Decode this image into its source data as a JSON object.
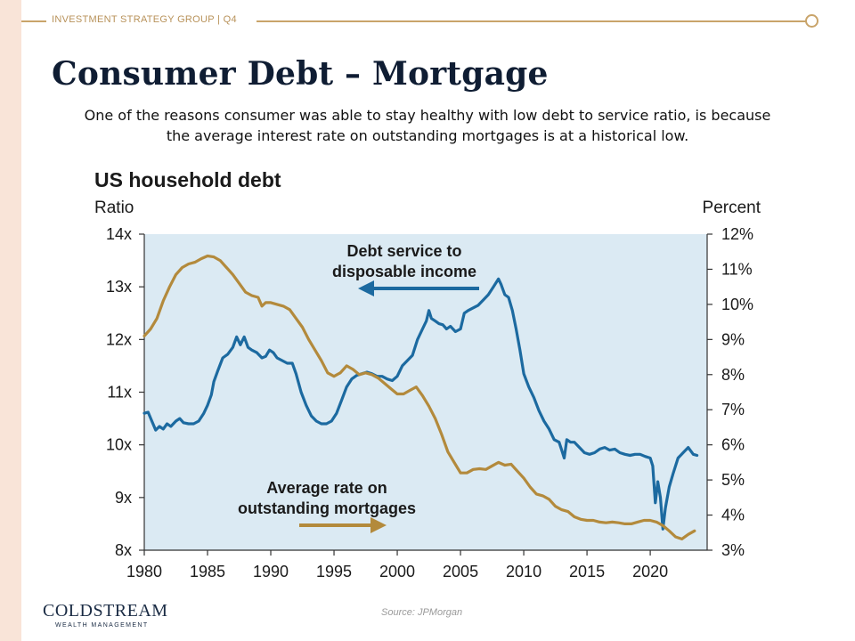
{
  "header": {
    "label": "INVESTMENT STRATEGY GROUP | Q4"
  },
  "slide": {
    "title": "Consumer Debt – Mortgage",
    "subtitle_line1": "One of the reasons consumer was able to stay healthy with low debt to service ratio, is because",
    "subtitle_line2": "the average interest rate on outstanding mortgages  is at a historical low."
  },
  "chart_data": {
    "type": "line",
    "title": "US household debt",
    "left_axis_label": "Ratio",
    "right_axis_label": "Percent",
    "x_ticks": [
      "1980",
      "1985",
      "1990",
      "1995",
      "2000",
      "2005",
      "2010",
      "2015",
      "2020"
    ],
    "left_ticks": [
      "14x",
      "13x",
      "12x",
      "11x",
      "10x",
      "9x",
      "8x"
    ],
    "right_ticks": [
      "12%",
      "11%",
      "10%",
      "9%",
      "8%",
      "7%",
      "6%",
      "5%",
      "4%",
      "3%"
    ],
    "xlim": [
      1980,
      2024.5
    ],
    "ylim_left": [
      8,
      14
    ],
    "ylim_right": [
      3,
      12
    ],
    "colors": {
      "debt_service": "#1c6aa0",
      "mortgage_rate": "#b38a3c",
      "plot_bg": "#dbeaf3"
    },
    "annotations": {
      "debt_service_line1": "Debt service to",
      "debt_service_line2": "disposable income",
      "mortgage_line1": "Average rate on",
      "mortgage_line2": "outstanding mortgages"
    },
    "series": [
      {
        "name": "Debt service to disposable income",
        "axis": "left",
        "points": [
          [
            1980.0,
            10.6
          ],
          [
            1980.3,
            10.62
          ],
          [
            1980.6,
            10.45
          ],
          [
            1980.9,
            10.28
          ],
          [
            1981.2,
            10.35
          ],
          [
            1981.5,
            10.3
          ],
          [
            1981.8,
            10.4
          ],
          [
            1982.1,
            10.35
          ],
          [
            1982.5,
            10.45
          ],
          [
            1982.8,
            10.5
          ],
          [
            1983.1,
            10.42
          ],
          [
            1983.5,
            10.4
          ],
          [
            1983.9,
            10.4
          ],
          [
            1984.3,
            10.45
          ],
          [
            1984.7,
            10.6
          ],
          [
            1985.0,
            10.75
          ],
          [
            1985.3,
            10.95
          ],
          [
            1985.5,
            11.2
          ],
          [
            1985.8,
            11.4
          ],
          [
            1986.2,
            11.65
          ],
          [
            1986.6,
            11.72
          ],
          [
            1987.0,
            11.85
          ],
          [
            1987.3,
            12.05
          ],
          [
            1987.6,
            11.9
          ],
          [
            1987.9,
            12.05
          ],
          [
            1988.2,
            11.85
          ],
          [
            1988.5,
            11.8
          ],
          [
            1988.9,
            11.75
          ],
          [
            1989.3,
            11.65
          ],
          [
            1989.6,
            11.68
          ],
          [
            1989.9,
            11.8
          ],
          [
            1990.2,
            11.75
          ],
          [
            1990.5,
            11.65
          ],
          [
            1990.9,
            11.6
          ],
          [
            1991.3,
            11.55
          ],
          [
            1991.7,
            11.55
          ],
          [
            1992.0,
            11.35
          ],
          [
            1992.4,
            11.0
          ],
          [
            1992.8,
            10.75
          ],
          [
            1993.2,
            10.55
          ],
          [
            1993.6,
            10.45
          ],
          [
            1994.0,
            10.4
          ],
          [
            1994.4,
            10.4
          ],
          [
            1994.8,
            10.45
          ],
          [
            1995.2,
            10.6
          ],
          [
            1995.6,
            10.85
          ],
          [
            1996.0,
            11.1
          ],
          [
            1996.4,
            11.25
          ],
          [
            1996.8,
            11.32
          ],
          [
            1997.2,
            11.35
          ],
          [
            1997.6,
            11.38
          ],
          [
            1998.0,
            11.35
          ],
          [
            1998.4,
            11.3
          ],
          [
            1998.8,
            11.3
          ],
          [
            1999.2,
            11.25
          ],
          [
            1999.6,
            11.22
          ],
          [
            2000.0,
            11.3
          ],
          [
            2000.4,
            11.5
          ],
          [
            2000.8,
            11.6
          ],
          [
            2001.2,
            11.7
          ],
          [
            2001.6,
            12.0
          ],
          [
            2002.0,
            12.2
          ],
          [
            2002.3,
            12.35
          ],
          [
            2002.5,
            12.55
          ],
          [
            2002.7,
            12.4
          ],
          [
            2003.0,
            12.35
          ],
          [
            2003.3,
            12.3
          ],
          [
            2003.6,
            12.28
          ],
          [
            2003.9,
            12.2
          ],
          [
            2004.2,
            12.25
          ],
          [
            2004.6,
            12.15
          ],
          [
            2005.0,
            12.2
          ],
          [
            2005.3,
            12.5
          ],
          [
            2005.6,
            12.55
          ],
          [
            2006.0,
            12.6
          ],
          [
            2006.4,
            12.65
          ],
          [
            2006.8,
            12.75
          ],
          [
            2007.2,
            12.85
          ],
          [
            2007.6,
            13.0
          ],
          [
            2008.0,
            13.15
          ],
          [
            2008.2,
            13.05
          ],
          [
            2008.5,
            12.85
          ],
          [
            2008.8,
            12.8
          ],
          [
            2009.1,
            12.55
          ],
          [
            2009.4,
            12.2
          ],
          [
            2009.7,
            11.8
          ],
          [
            2010.0,
            11.35
          ],
          [
            2010.4,
            11.1
          ],
          [
            2010.8,
            10.9
          ],
          [
            2011.2,
            10.65
          ],
          [
            2011.6,
            10.45
          ],
          [
            2012.0,
            10.3
          ],
          [
            2012.4,
            10.1
          ],
          [
            2012.8,
            10.05
          ],
          [
            2013.0,
            9.9
          ],
          [
            2013.2,
            9.75
          ],
          [
            2013.4,
            10.1
          ],
          [
            2013.7,
            10.05
          ],
          [
            2014.0,
            10.05
          ],
          [
            2014.4,
            9.95
          ],
          [
            2014.8,
            9.85
          ],
          [
            2015.2,
            9.82
          ],
          [
            2015.6,
            9.85
          ],
          [
            2016.0,
            9.92
          ],
          [
            2016.4,
            9.95
          ],
          [
            2016.8,
            9.9
          ],
          [
            2017.2,
            9.92
          ],
          [
            2017.6,
            9.85
          ],
          [
            2018.0,
            9.82
          ],
          [
            2018.4,
            9.8
          ],
          [
            2018.8,
            9.82
          ],
          [
            2019.2,
            9.82
          ],
          [
            2019.6,
            9.78
          ],
          [
            2020.0,
            9.75
          ],
          [
            2020.2,
            9.6
          ],
          [
            2020.4,
            8.9
          ],
          [
            2020.6,
            9.3
          ],
          [
            2020.8,
            9.0
          ],
          [
            2021.0,
            8.4
          ],
          [
            2021.2,
            8.8
          ],
          [
            2021.5,
            9.2
          ],
          [
            2021.8,
            9.45
          ],
          [
            2022.2,
            9.75
          ],
          [
            2022.6,
            9.85
          ],
          [
            2023.0,
            9.95
          ],
          [
            2023.4,
            9.82
          ],
          [
            2023.7,
            9.8
          ]
        ]
      },
      {
        "name": "Average rate on outstanding mortgages",
        "axis": "right",
        "points": [
          [
            1980.0,
            9.1
          ],
          [
            1980.5,
            9.3
          ],
          [
            1981.0,
            9.6
          ],
          [
            1981.5,
            10.1
          ],
          [
            1982.0,
            10.5
          ],
          [
            1982.5,
            10.85
          ],
          [
            1983.0,
            11.05
          ],
          [
            1983.5,
            11.15
          ],
          [
            1984.0,
            11.2
          ],
          [
            1984.5,
            11.3
          ],
          [
            1985.0,
            11.38
          ],
          [
            1985.5,
            11.35
          ],
          [
            1986.0,
            11.25
          ],
          [
            1986.5,
            11.05
          ],
          [
            1987.0,
            10.85
          ],
          [
            1987.5,
            10.6
          ],
          [
            1988.0,
            10.35
          ],
          [
            1988.5,
            10.25
          ],
          [
            1989.0,
            10.2
          ],
          [
            1989.3,
            9.95
          ],
          [
            1989.6,
            10.05
          ],
          [
            1990.0,
            10.05
          ],
          [
            1990.5,
            10.0
          ],
          [
            1991.0,
            9.95
          ],
          [
            1991.5,
            9.85
          ],
          [
            1992.0,
            9.6
          ],
          [
            1992.5,
            9.35
          ],
          [
            1993.0,
            9.0
          ],
          [
            1993.5,
            8.7
          ],
          [
            1994.0,
            8.4
          ],
          [
            1994.5,
            8.05
          ],
          [
            1995.0,
            7.95
          ],
          [
            1995.5,
            8.05
          ],
          [
            1996.0,
            8.25
          ],
          [
            1996.5,
            8.15
          ],
          [
            1997.0,
            8.0
          ],
          [
            1997.5,
            8.05
          ],
          [
            1998.0,
            8.0
          ],
          [
            1998.5,
            7.9
          ],
          [
            1999.0,
            7.75
          ],
          [
            1999.5,
            7.6
          ],
          [
            2000.0,
            7.45
          ],
          [
            2000.5,
            7.45
          ],
          [
            2001.0,
            7.55
          ],
          [
            2001.5,
            7.65
          ],
          [
            2002.0,
            7.4
          ],
          [
            2002.5,
            7.1
          ],
          [
            2003.0,
            6.75
          ],
          [
            2003.5,
            6.3
          ],
          [
            2004.0,
            5.8
          ],
          [
            2004.5,
            5.5
          ],
          [
            2005.0,
            5.2
          ],
          [
            2005.5,
            5.2
          ],
          [
            2006.0,
            5.3
          ],
          [
            2006.5,
            5.32
          ],
          [
            2007.0,
            5.3
          ],
          [
            2007.5,
            5.4
          ],
          [
            2008.0,
            5.5
          ],
          [
            2008.5,
            5.42
          ],
          [
            2009.0,
            5.45
          ],
          [
            2009.5,
            5.25
          ],
          [
            2010.0,
            5.05
          ],
          [
            2010.5,
            4.8
          ],
          [
            2011.0,
            4.6
          ],
          [
            2011.5,
            4.55
          ],
          [
            2012.0,
            4.45
          ],
          [
            2012.5,
            4.25
          ],
          [
            2013.0,
            4.15
          ],
          [
            2013.5,
            4.1
          ],
          [
            2014.0,
            3.95
          ],
          [
            2014.5,
            3.88
          ],
          [
            2015.0,
            3.85
          ],
          [
            2015.5,
            3.85
          ],
          [
            2016.0,
            3.8
          ],
          [
            2016.5,
            3.78
          ],
          [
            2017.0,
            3.8
          ],
          [
            2017.5,
            3.78
          ],
          [
            2018.0,
            3.75
          ],
          [
            2018.5,
            3.75
          ],
          [
            2019.0,
            3.8
          ],
          [
            2019.5,
            3.85
          ],
          [
            2020.0,
            3.85
          ],
          [
            2020.5,
            3.8
          ],
          [
            2021.0,
            3.7
          ],
          [
            2021.5,
            3.55
          ],
          [
            2022.0,
            3.38
          ],
          [
            2022.5,
            3.32
          ],
          [
            2023.0,
            3.45
          ],
          [
            2023.5,
            3.55
          ]
        ]
      }
    ]
  },
  "source": "Source: JPMorgan",
  "logo": {
    "name": "COLDSTREAM",
    "tagline": "WEALTH MANAGEMENT"
  }
}
